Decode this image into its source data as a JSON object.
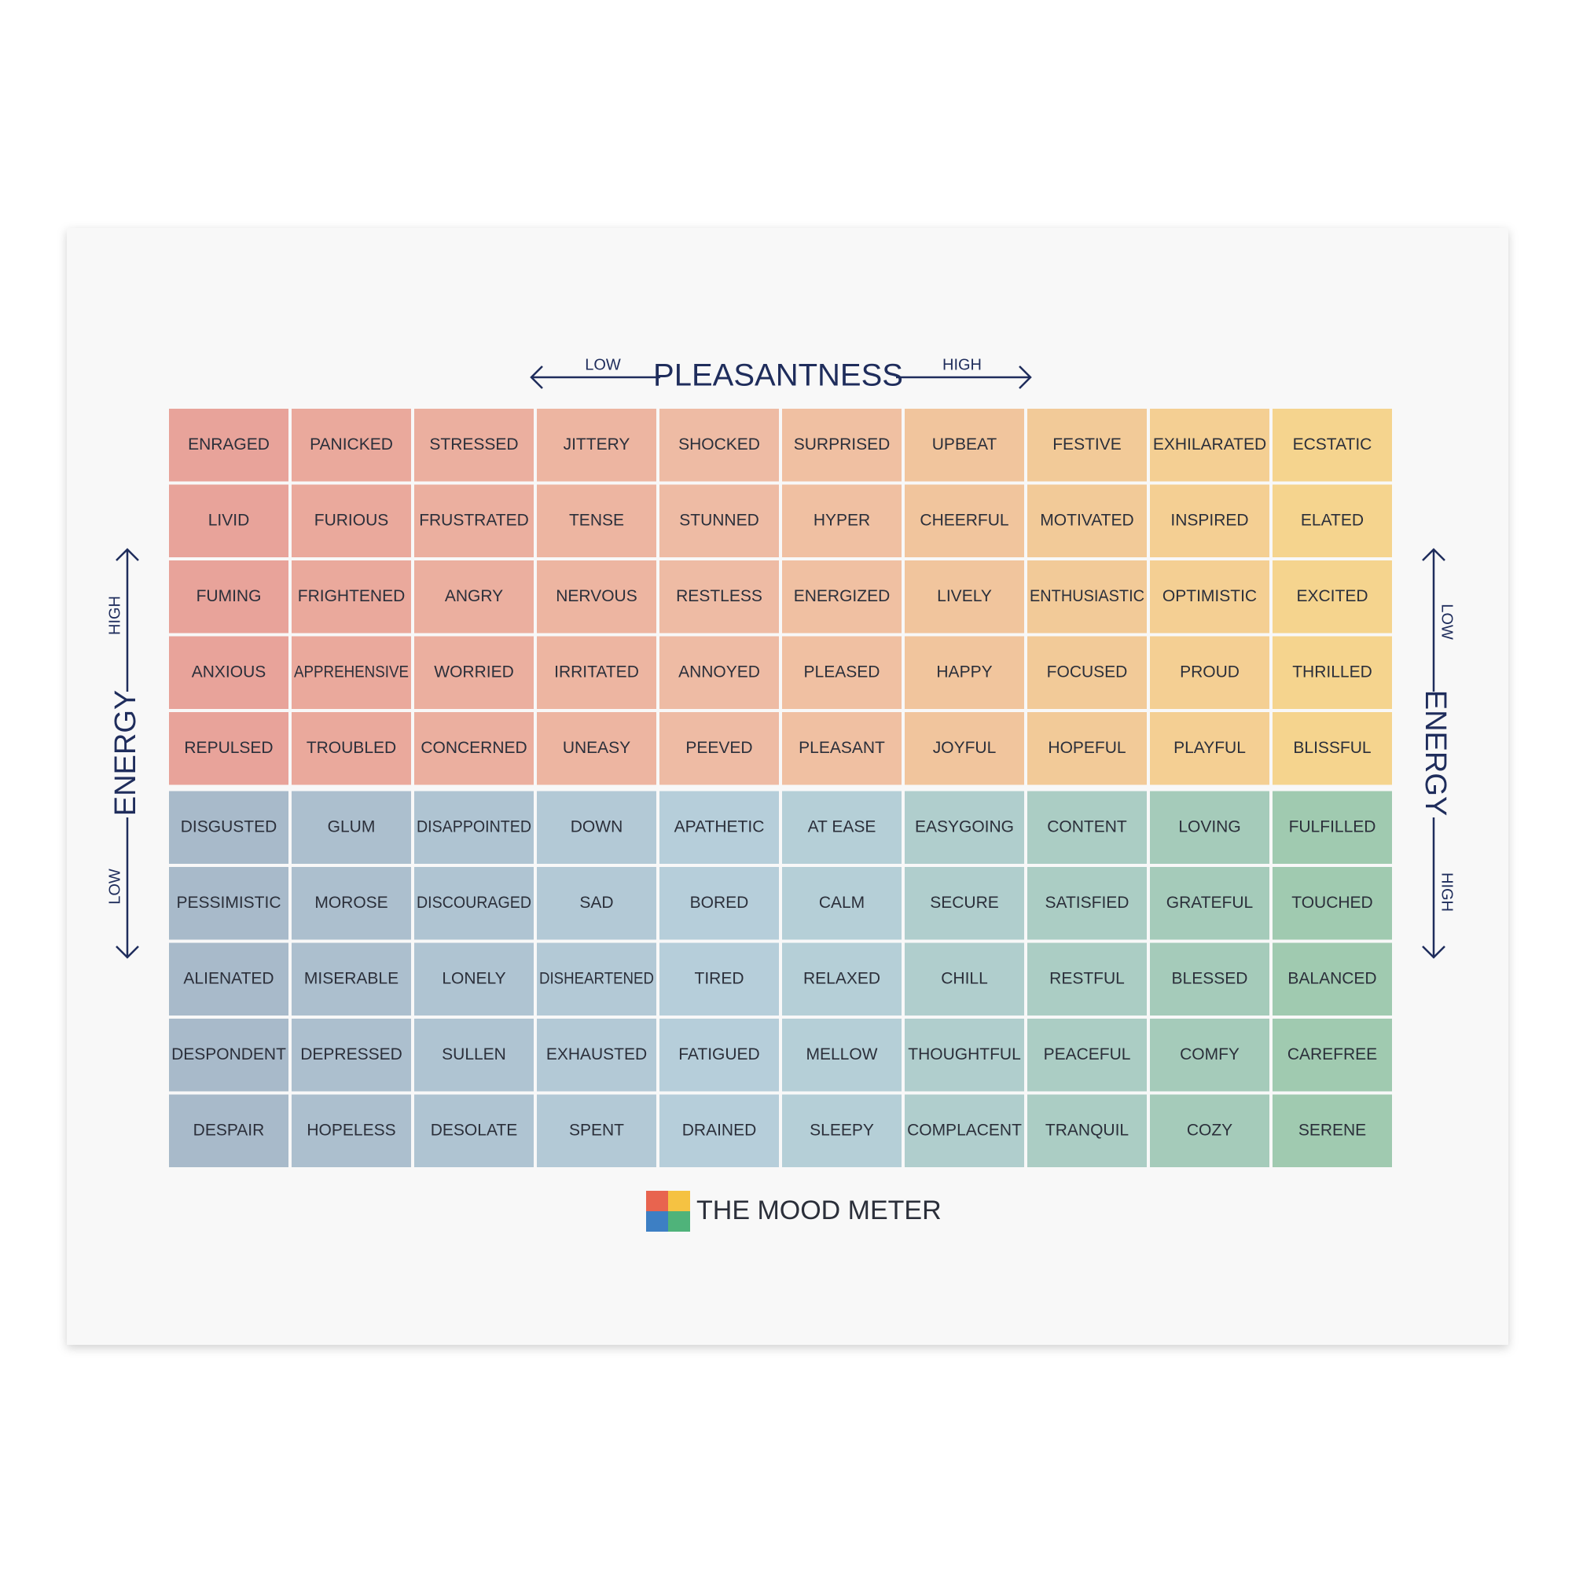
{
  "axes": {
    "top": {
      "title": "PLEASANTNESS",
      "low": "LOW",
      "high": "HIGH"
    },
    "left": {
      "title": "ENERGY",
      "high": "HIGH",
      "low": "LOW"
    },
    "right": {
      "title": "ENERGY",
      "low": "LOW",
      "high": "HIGH"
    }
  },
  "grid": {
    "rows": [
      [
        "ENRAGED",
        "PANICKED",
        "STRESSED",
        "JITTERY",
        "SHOCKED",
        "SURPRISED",
        "UPBEAT",
        "FESTIVE",
        "EXHILARATED",
        "ECSTATIC"
      ],
      [
        "LIVID",
        "FURIOUS",
        "FRUSTRATED",
        "TENSE",
        "STUNNED",
        "HYPER",
        "CHEERFUL",
        "MOTIVATED",
        "INSPIRED",
        "ELATED"
      ],
      [
        "FUMING",
        "FRIGHTENED",
        "ANGRY",
        "NERVOUS",
        "RESTLESS",
        "ENERGIZED",
        "LIVELY",
        "ENTHUSIASTIC",
        "OPTIMISTIC",
        "EXCITED"
      ],
      [
        "ANXIOUS",
        "APPREHENSIVE",
        "WORRIED",
        "IRRITATED",
        "ANNOYED",
        "PLEASED",
        "HAPPY",
        "FOCUSED",
        "PROUD",
        "THRILLED"
      ],
      [
        "REPULSED",
        "TROUBLED",
        "CONCERNED",
        "UNEASY",
        "PEEVED",
        "PLEASANT",
        "JOYFUL",
        "HOPEFUL",
        "PLAYFUL",
        "BLISSFUL"
      ],
      [
        "DISGUSTED",
        "GLUM",
        "DISAPPOINTED",
        "DOWN",
        "APATHETIC",
        "AT EASE",
        "EASYGOING",
        "CONTENT",
        "LOVING",
        "FULFILLED"
      ],
      [
        "PESSIMISTIC",
        "MOROSE",
        "DISCOURAGED",
        "SAD",
        "BORED",
        "CALM",
        "SECURE",
        "SATISFIED",
        "GRATEFUL",
        "TOUCHED"
      ],
      [
        "ALIENATED",
        "MISERABLE",
        "LONELY",
        "DISHEARTENED",
        "TIRED",
        "RELAXED",
        "CHILL",
        "RESTFUL",
        "BLESSED",
        "BALANCED"
      ],
      [
        "DESPONDENT",
        "DEPRESSED",
        "SULLEN",
        "EXHAUSTED",
        "FATIGUED",
        "MELLOW",
        "THOUGHTFUL",
        "PEACEFUL",
        "COMFY",
        "CAREFREE"
      ],
      [
        "DESPAIR",
        "HOPELESS",
        "DESOLATE",
        "SPENT",
        "DRAINED",
        "SLEEPY",
        "COMPLACENT",
        "TRANQUIL",
        "COZY",
        "SERENE"
      ]
    ]
  },
  "footer": {
    "brand": "THE MOOD METER"
  }
}
